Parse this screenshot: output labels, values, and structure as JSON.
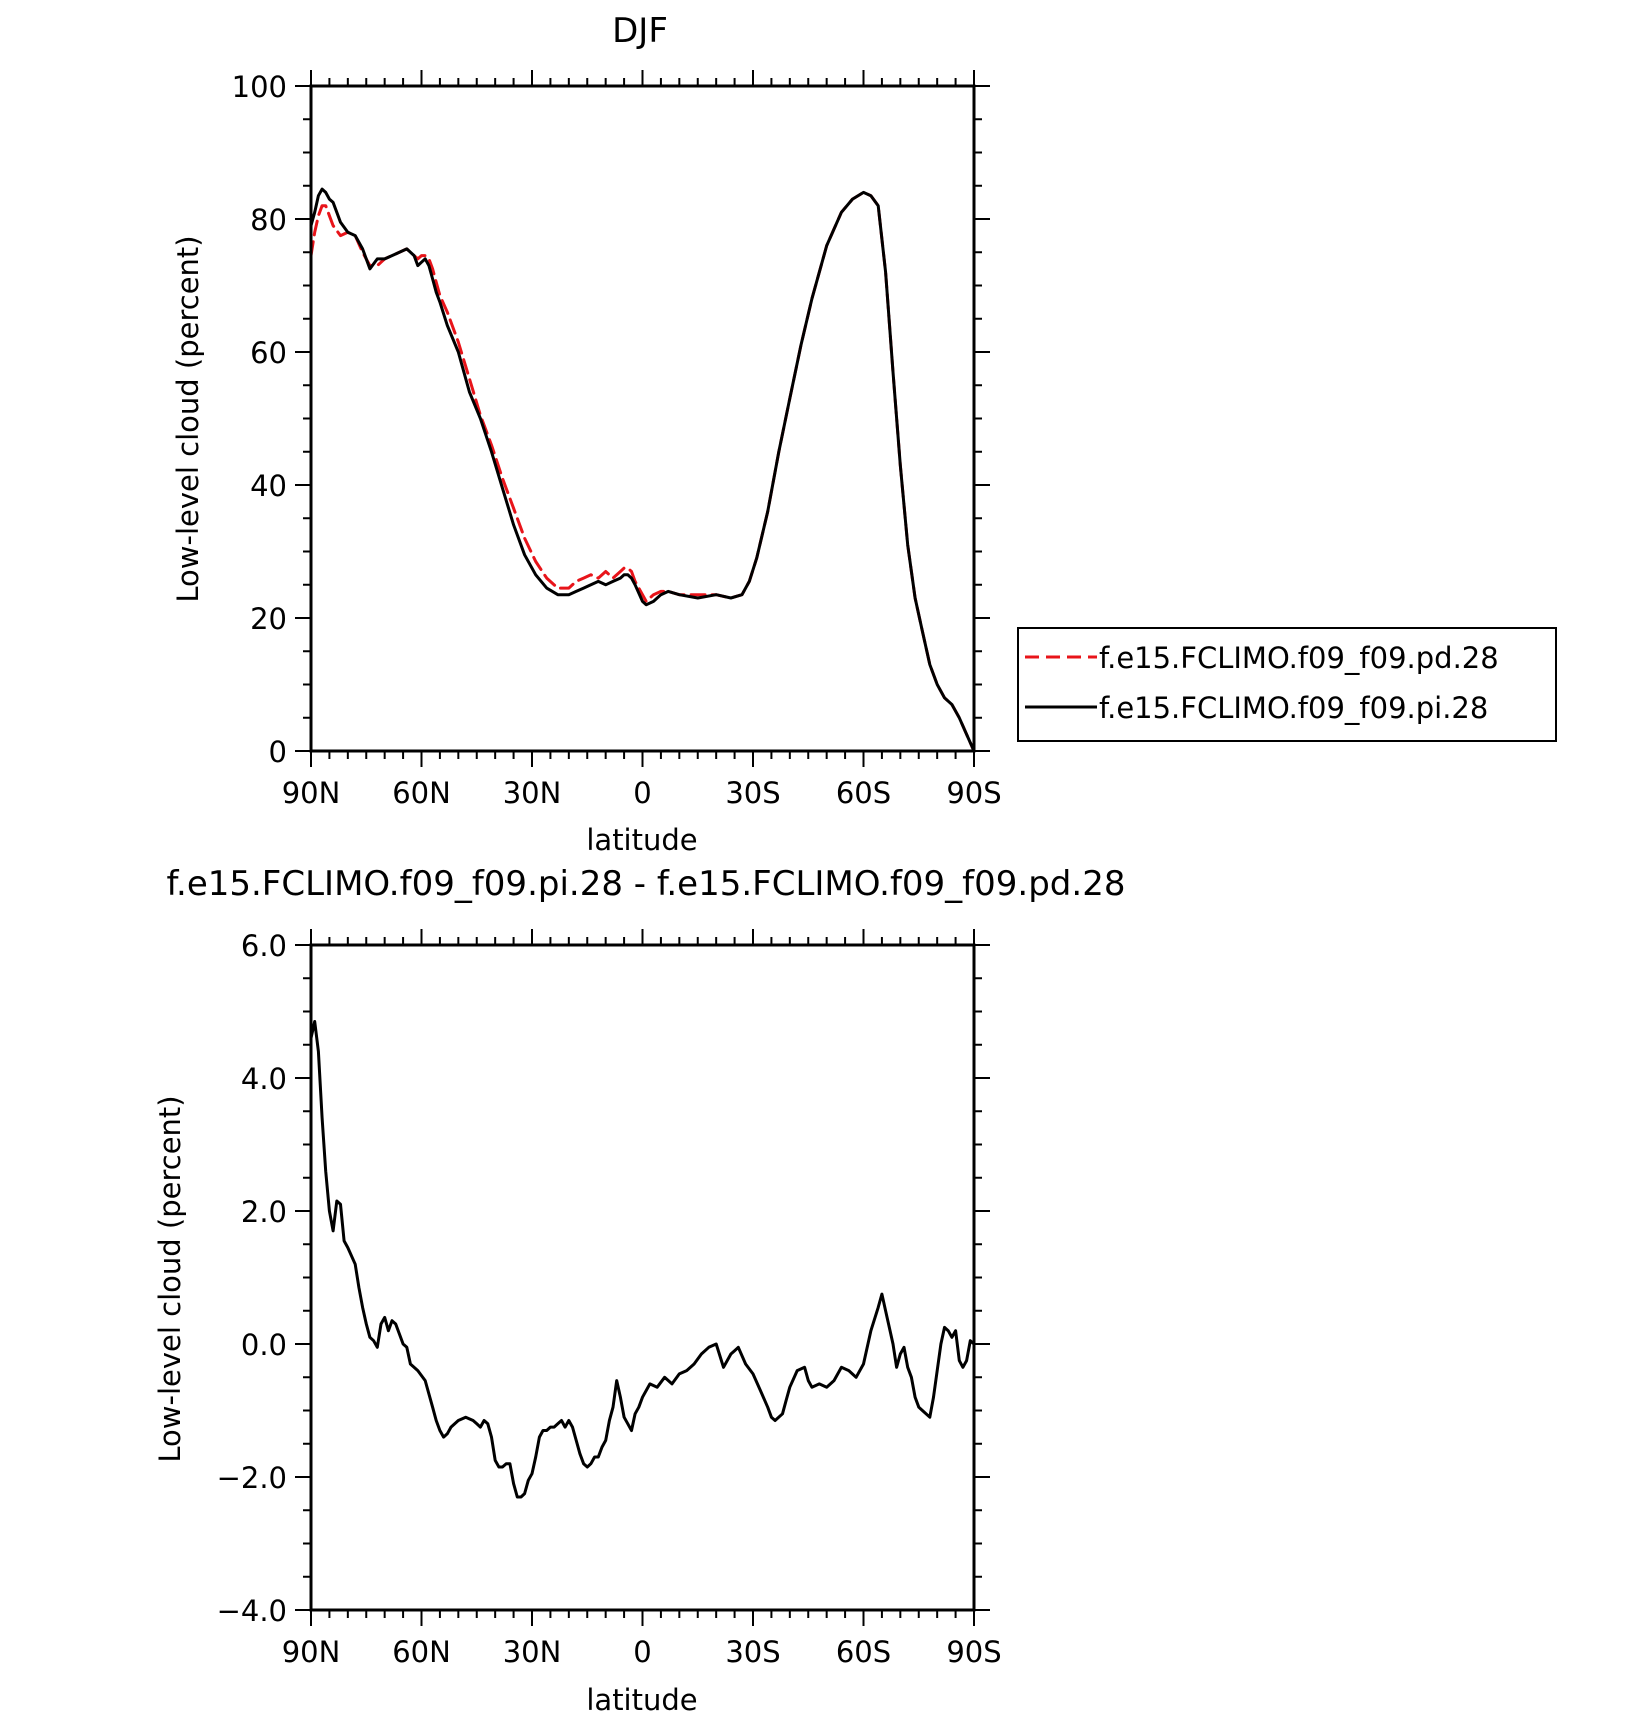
{
  "chart_data": [
    {
      "type": "line",
      "title": "DJF",
      "xlabel": "latitude",
      "ylabel": "Low-level cloud (percent)",
      "xlim": [
        90,
        -90
      ],
      "ylim": [
        0,
        100
      ],
      "xticks": [
        90,
        60,
        30,
        0,
        -30,
        -60,
        -90
      ],
      "xtick_labels": [
        "90N",
        "60N",
        "30N",
        "0",
        "30S",
        "60S",
        "90S"
      ],
      "yticks": [
        0,
        20,
        40,
        60,
        80,
        100
      ],
      "ytick_labels": [
        "0",
        "20",
        "40",
        "60",
        "80",
        "100"
      ],
      "legend_position": "right",
      "series": [
        {
          "name": "f.e15.FCLIMO.f09_f09.pd.28",
          "color": "#e8141a",
          "dash": "dashed",
          "x": [
            90,
            89,
            88,
            87,
            86,
            85,
            84,
            82,
            80,
            78,
            76,
            74,
            72,
            70,
            68,
            66,
            64,
            62,
            61,
            60,
            59,
            58,
            57,
            56,
            55,
            53,
            50,
            47,
            44,
            41,
            38,
            35,
            32,
            29,
            26,
            23,
            20,
            18,
            16,
            14,
            12,
            10,
            8,
            6,
            5,
            4,
            3,
            2,
            0,
            -1,
            -3,
            -5,
            -7,
            -10,
            -15,
            -20,
            -24,
            -27,
            -29,
            -31,
            -34,
            -37,
            -40,
            -43,
            -46,
            -50,
            -54,
            -57,
            -60,
            -62,
            -64,
            -66,
            -68,
            -70,
            -72,
            -74,
            -76,
            -78,
            -80,
            -82,
            -84,
            -86,
            -88,
            -90
          ],
          "y": [
            74.5,
            78,
            80.5,
            82,
            82,
            80.5,
            79,
            77.5,
            78,
            77.5,
            75,
            73,
            73,
            74,
            74.5,
            75,
            75.5,
            74.5,
            74,
            74.5,
            74.5,
            74,
            72.5,
            70.5,
            68.5,
            66,
            61.5,
            56,
            50.5,
            46,
            41,
            36.5,
            32,
            28.5,
            26,
            24.5,
            24.5,
            25.5,
            26,
            26.5,
            26,
            27,
            26,
            27,
            27.5,
            27.5,
            27,
            25.5,
            23.5,
            22.5,
            23.5,
            24,
            24,
            23.5,
            23.5,
            23.5,
            23,
            23.5,
            25.5,
            29,
            36,
            45,
            53,
            61,
            68,
            76,
            81,
            83,
            84,
            83.5,
            82,
            72,
            57,
            43,
            31,
            23,
            18,
            13,
            10,
            8,
            7,
            5,
            2.5,
            0
          ]
        },
        {
          "name": "f.e15.FCLIMO.f09_f09.pi.28",
          "color": "#000000",
          "dash": "solid",
          "x": [
            90,
            89,
            88,
            87,
            86,
            85,
            84,
            83,
            82,
            80,
            78,
            76,
            74,
            72,
            70,
            68,
            66,
            64,
            62,
            61,
            60,
            59,
            58,
            57,
            56,
            55,
            53,
            50,
            47,
            44,
            41,
            38,
            35,
            32,
            29,
            26,
            23,
            20,
            18,
            16,
            14,
            12,
            10,
            8,
            6,
            5,
            4,
            3,
            2,
            0,
            -1,
            -3,
            -5,
            -7,
            -10,
            -15,
            -20,
            -24,
            -27,
            -29,
            -31,
            -34,
            -37,
            -40,
            -43,
            -46,
            -50,
            -54,
            -57,
            -60,
            -62,
            -64,
            -66,
            -68,
            -70,
            -72,
            -74,
            -76,
            -78,
            -80,
            -82,
            -84,
            -86,
            -88,
            -90
          ],
          "y": [
            79,
            81,
            83.5,
            84.5,
            84,
            83,
            82.5,
            81,
            79.5,
            78,
            77.5,
            75.5,
            72.5,
            74,
            74,
            74.5,
            75,
            75.5,
            74.5,
            73,
            73.5,
            74,
            73,
            71,
            69,
            67.5,
            64,
            60,
            54,
            50,
            45,
            39.5,
            34,
            29.5,
            26.5,
            24.5,
            23.5,
            23.5,
            24,
            24.5,
            25,
            25.5,
            25,
            25.5,
            26,
            26.5,
            26.5,
            26,
            25,
            22.5,
            22,
            22.5,
            23.5,
            24,
            23.5,
            23,
            23.5,
            23,
            23.5,
            25.5,
            29,
            36,
            45,
            53,
            61,
            68,
            76,
            81,
            83,
            84,
            83.5,
            82,
            72,
            57,
            43,
            31,
            23,
            18,
            13,
            10,
            8,
            7,
            5,
            2.5,
            0
          ]
        }
      ]
    },
    {
      "type": "line",
      "title": "f.e15.FCLIMO.f09_f09.pi.28 - f.e15.FCLIMO.f09_f09.pd.28",
      "xlabel": "latitude",
      "ylabel": "Low-level cloud (percent)",
      "xlim": [
        90,
        -90
      ],
      "ylim": [
        -4,
        6
      ],
      "xticks": [
        90,
        60,
        30,
        0,
        -30,
        -60,
        -90
      ],
      "xtick_labels": [
        "90N",
        "60N",
        "30N",
        "0",
        "30S",
        "60S",
        "90S"
      ],
      "yticks": [
        -4,
        -2,
        0,
        2,
        4,
        6
      ],
      "ytick_labels": [
        "−4.0",
        "−2.0",
        "0.0",
        "2.0",
        "4.0",
        "6.0"
      ],
      "series": [
        {
          "color": "#000000",
          "dash": "solid",
          "x": [
            90,
            89,
            88,
            87,
            86,
            85,
            84,
            83,
            82,
            81,
            80,
            78,
            77,
            76,
            75,
            74,
            73,
            72,
            71,
            70,
            69,
            68,
            67,
            66,
            65,
            64,
            63,
            61,
            59,
            57,
            56,
            55,
            54,
            53,
            52,
            50,
            48,
            46,
            45,
            44,
            43,
            42,
            41,
            40,
            39,
            38,
            37,
            36,
            35,
            34,
            33,
            32,
            31,
            30,
            29,
            28,
            27,
            26,
            25,
            24,
            23,
            22,
            21,
            20,
            19,
            18,
            17,
            16,
            15,
            14,
            13,
            12,
            11,
            10,
            9,
            8,
            7,
            6,
            5,
            4,
            3,
            2,
            1,
            0,
            -2,
            -4,
            -6,
            -8,
            -10,
            -12,
            -14,
            -16,
            -18,
            -20,
            -22,
            -24,
            -25,
            -26,
            -28,
            -30,
            -32,
            -34,
            -35,
            -36,
            -38,
            -39,
            -40,
            -42,
            -44,
            -45,
            -46,
            -48,
            -50,
            -52,
            -54,
            -56,
            -58,
            -60,
            -62,
            -64,
            -65,
            -66,
            -68,
            -69,
            -70,
            -71,
            -72,
            -73,
            -74,
            -75,
            -76,
            -78,
            -79,
            -80,
            -81,
            -82,
            -83,
            -84,
            -85,
            -86,
            -87,
            -88,
            -89,
            -90
          ],
          "y": [
            4.6,
            4.85,
            4.4,
            3.4,
            2.6,
            2.0,
            1.7,
            2.15,
            2.1,
            1.55,
            1.45,
            1.2,
            0.85,
            0.55,
            0.3,
            0.1,
            0.05,
            -0.05,
            0.3,
            0.4,
            0.2,
            0.35,
            0.3,
            0.15,
            0.0,
            -0.05,
            -0.3,
            -0.4,
            -0.55,
            -0.95,
            -1.15,
            -1.3,
            -1.4,
            -1.35,
            -1.25,
            -1.15,
            -1.1,
            -1.15,
            -1.2,
            -1.25,
            -1.15,
            -1.2,
            -1.4,
            -1.75,
            -1.85,
            -1.85,
            -1.8,
            -1.8,
            -2.1,
            -2.3,
            -2.3,
            -2.25,
            -2.05,
            -1.95,
            -1.7,
            -1.4,
            -1.3,
            -1.3,
            -1.25,
            -1.25,
            -1.2,
            -1.15,
            -1.25,
            -1.15,
            -1.25,
            -1.45,
            -1.65,
            -1.8,
            -1.85,
            -1.8,
            -1.7,
            -1.7,
            -1.55,
            -1.45,
            -1.15,
            -0.95,
            -0.55,
            -0.8,
            -1.1,
            -1.2,
            -1.3,
            -1.05,
            -0.95,
            -0.8,
            -0.6,
            -0.65,
            -0.5,
            -0.6,
            -0.45,
            -0.4,
            -0.3,
            -0.15,
            -0.05,
            0.0,
            -0.35,
            -0.15,
            -0.1,
            -0.05,
            -0.3,
            -0.45,
            -0.7,
            -0.95,
            -1.1,
            -1.15,
            -1.05,
            -0.85,
            -0.65,
            -0.4,
            -0.35,
            -0.55,
            -0.65,
            -0.6,
            -0.65,
            -0.55,
            -0.35,
            -0.4,
            -0.5,
            -0.3,
            0.2,
            0.55,
            0.75,
            0.5,
            0.0,
            -0.35,
            -0.15,
            -0.05,
            -0.35,
            -0.5,
            -0.8,
            -0.95,
            -1.0,
            -1.1,
            -0.8,
            -0.4,
            0.0,
            0.25,
            0.2,
            0.1,
            0.2,
            -0.25,
            -0.35,
            -0.25,
            0.05,
            0.0
          ]
        }
      ]
    }
  ]
}
